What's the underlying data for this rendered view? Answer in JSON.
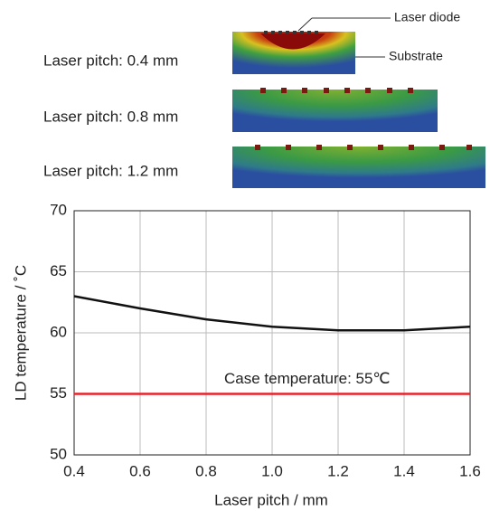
{
  "thermal_images": {
    "items": [
      {
        "label": "Laser pitch: 0.4 mm"
      },
      {
        "label": "Laser pitch: 0.8 mm"
      },
      {
        "label": "Laser pitch: 1.2 mm"
      }
    ],
    "callouts": [
      "Laser diode",
      "Substrate"
    ]
  },
  "chart_data": {
    "type": "line",
    "x": [
      0.4,
      0.6,
      0.8,
      1.0,
      1.2,
      1.4,
      1.6
    ],
    "series": [
      {
        "color": "#111111",
        "values": [
          63.0,
          62.0,
          61.1,
          60.5,
          60.2,
          60.2,
          60.5
        ]
      }
    ],
    "reference_line": {
      "value": 55,
      "color": "#e8202a",
      "label": "Case temperature: 55℃"
    },
    "xlabel": "Laser pitch / mm",
    "ylabel": "LD temperature  / ˚C",
    "xlim": [
      0.4,
      1.6
    ],
    "xticks": [
      0.4,
      0.6,
      0.8,
      {
        "value": 1.0,
        "label": "1.0"
      },
      1.2,
      1.4,
      1.6
    ],
    "ylim": [
      50,
      70
    ],
    "yticks": [
      50,
      55,
      60,
      65,
      70
    ],
    "grid": true
  }
}
